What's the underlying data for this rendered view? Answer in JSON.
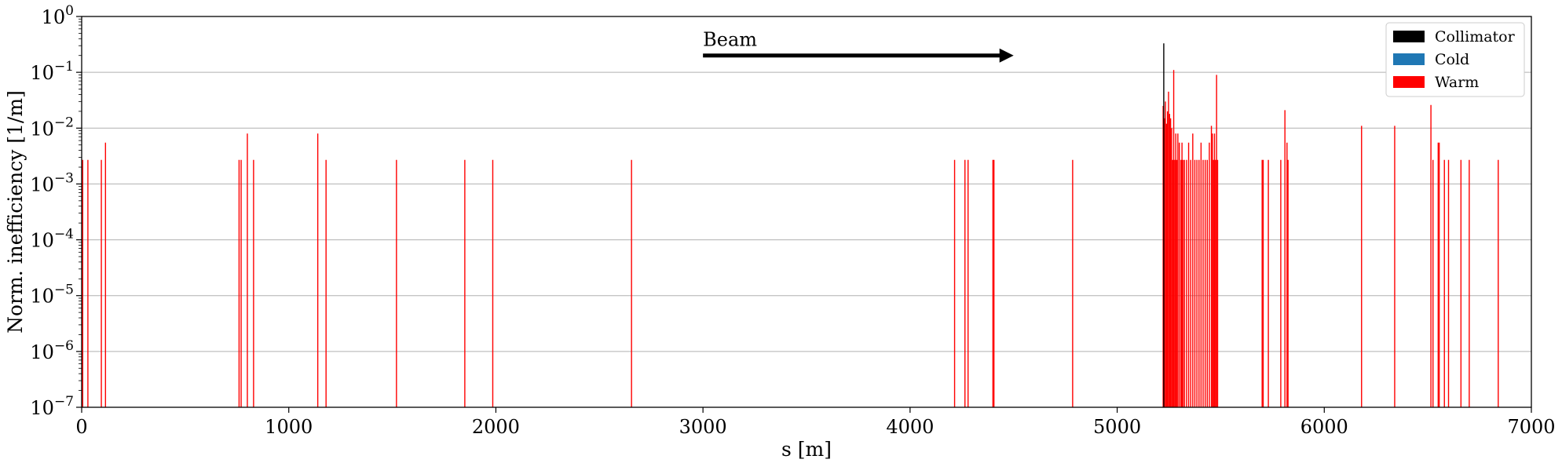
{
  "chart_data": {
    "type": "bar",
    "xlabel": "s [m]",
    "ylabel": "Norm. inefficiency [1/m]",
    "xlim": [
      0,
      7000
    ],
    "ylim": [
      1e-07,
      1
    ],
    "yscale": "log",
    "grid": "y-major",
    "x_ticks": [
      "0",
      "1000",
      "2000",
      "3000",
      "4000",
      "5000",
      "6000",
      "7000"
    ],
    "x_tick_values": [
      0,
      1000,
      2000,
      3000,
      4000,
      5000,
      6000,
      7000
    ],
    "y_ticks": [
      {
        "base": "10",
        "exp": "0",
        "value": 1
      },
      {
        "base": "10",
        "exp": "−1",
        "value": 0.1
      },
      {
        "base": "10",
        "exp": "−2",
        "value": 0.01
      },
      {
        "base": "10",
        "exp": "−3",
        "value": 0.001
      },
      {
        "base": "10",
        "exp": "−4",
        "value": 0.0001
      },
      {
        "base": "10",
        "exp": "−5",
        "value": 1e-05
      },
      {
        "base": "10",
        "exp": "−6",
        "value": 1e-06
      },
      {
        "base": "10",
        "exp": "−7",
        "value": 1e-07
      }
    ],
    "legend": {
      "position": "top-right",
      "entries": [
        {
          "name": "Collimator",
          "color": "#000000"
        },
        {
          "name": "Cold",
          "color": "#1f77b4"
        },
        {
          "name": "Warm",
          "color": "#ff0000"
        }
      ]
    },
    "annotation": {
      "text": "Beam",
      "arrow_from": [
        3000,
        0.2
      ],
      "arrow_to": [
        4500,
        0.2
      ]
    },
    "series": [
      {
        "name": "Collimator",
        "color": "#000000",
        "x": [
          5225
        ],
        "values": [
          0.33
        ]
      },
      {
        "name": "Cold",
        "color": "#1f77b4",
        "x": [],
        "values": []
      },
      {
        "name": "Warm",
        "color": "#ff0000",
        "x": [
          5,
          30,
          95,
          115,
          760,
          770,
          800,
          830,
          1140,
          1180,
          1520,
          1850,
          1985,
          2655,
          4215,
          4265,
          4280,
          4400,
          4405,
          4785,
          5222,
          5228,
          5233,
          5238,
          5243,
          5248,
          5253,
          5258,
          5263,
          5268,
          5273,
          5278,
          5283,
          5288,
          5293,
          5300,
          5308,
          5313,
          5318,
          5325,
          5335,
          5345,
          5355,
          5365,
          5375,
          5385,
          5395,
          5405,
          5415,
          5425,
          5435,
          5445,
          5455,
          5460,
          5465,
          5470,
          5475,
          5480,
          5485,
          5700,
          5705,
          5730,
          5790,
          5810,
          5820,
          5825,
          6180,
          6340,
          6515,
          6525,
          6550,
          6555,
          6580,
          6600,
          6660,
          6700,
          6840
        ],
        "values": [
          0.0027,
          0.0027,
          0.0027,
          0.0055,
          0.0027,
          0.0027,
          0.008,
          0.0027,
          0.008,
          0.0027,
          0.0027,
          0.0027,
          0.0027,
          0.0027,
          0.0027,
          0.0027,
          0.0027,
          0.0027,
          0.0027,
          0.0027,
          0.025,
          0.015,
          0.03,
          0.012,
          0.02,
          0.045,
          0.018,
          0.015,
          0.01,
          0.0027,
          0.11,
          0.0027,
          0.008,
          0.0027,
          0.008,
          0.0055,
          0.0027,
          0.0055,
          0.0027,
          0.0027,
          0.0027,
          0.0055,
          0.0027,
          0.008,
          0.0027,
          0.0027,
          0.0027,
          0.0055,
          0.0027,
          0.0027,
          0.0027,
          0.0055,
          0.011,
          0.008,
          0.0027,
          0.008,
          0.0027,
          0.09,
          0.0027,
          0.0027,
          0.0027,
          0.0027,
          0.0027,
          0.021,
          0.0055,
          0.0027,
          0.011,
          0.011,
          0.026,
          0.0027,
          0.0055,
          0.0055,
          0.0027,
          0.0027,
          0.0027,
          0.0027,
          0.0027
        ]
      }
    ]
  }
}
